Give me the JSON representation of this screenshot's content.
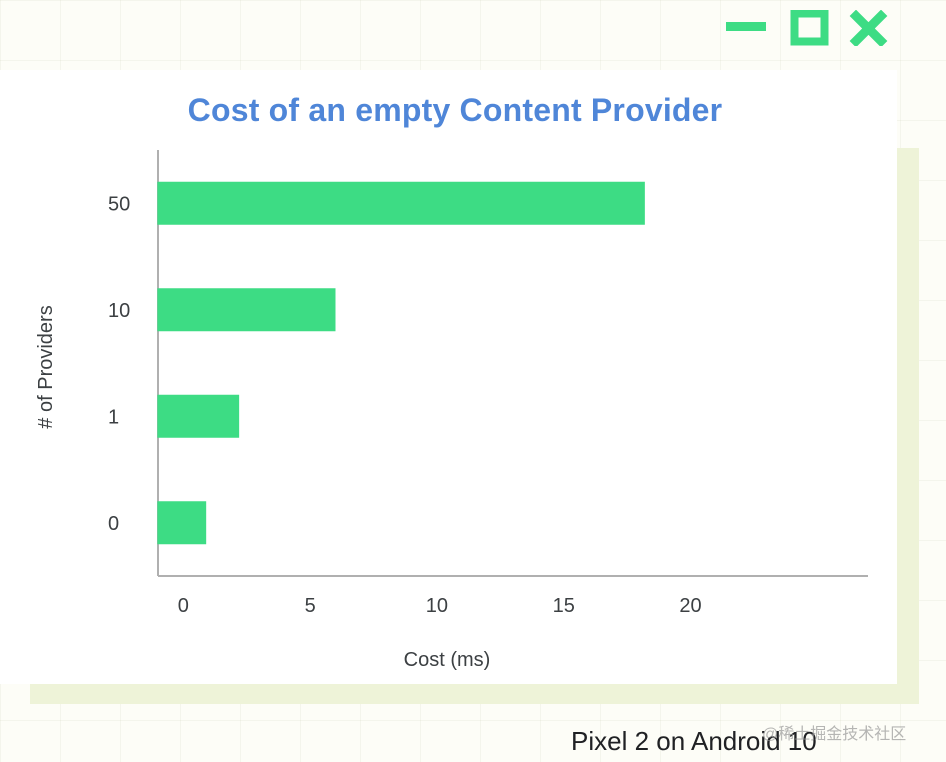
{
  "window": {
    "controls": [
      {
        "icon": "minimize-icon"
      },
      {
        "icon": "maximize-icon"
      },
      {
        "icon": "close-icon"
      }
    ],
    "accent_color": "#3ddc84"
  },
  "chart_data": {
    "type": "bar",
    "orientation": "horizontal",
    "title": "Cost of an empty Content Provider",
    "xlabel": "Cost (ms)",
    "ylabel": "# of Providers",
    "categories": [
      "50",
      "10",
      "1",
      "0"
    ],
    "values": [
      18.2,
      6.0,
      2.2,
      0.9
    ],
    "x_ticks": [
      "0",
      "5",
      "10",
      "15",
      "20"
    ],
    "xlim": [
      -1,
      27
    ],
    "grid": false,
    "legend": "none",
    "bar_color": "#3ddc84",
    "title_color": "#4f86d8"
  },
  "footer": {
    "device_label": "Pixel 2 on Android 10"
  },
  "watermark": {
    "text": "@稀土掘金技术社区"
  }
}
